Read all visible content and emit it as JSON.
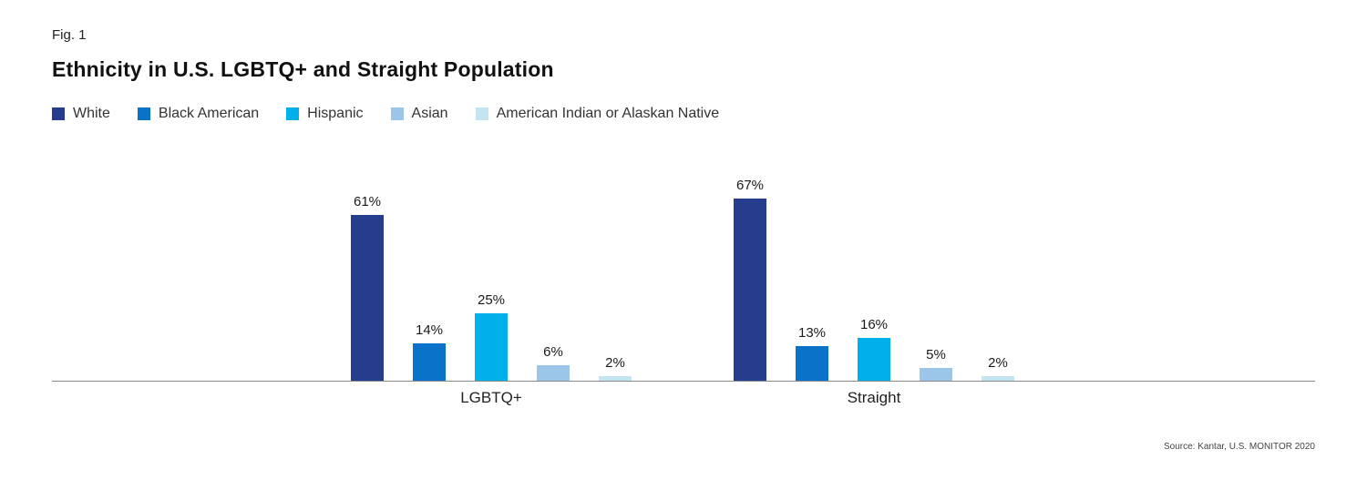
{
  "figure": {
    "fig_label": "Fig. 1",
    "title": "Ethnicity in U.S. LGBTQ+ and Straight Population",
    "source": "Source: Kantar, U.S. MONITOR 2020"
  },
  "chart_data": {
    "type": "bar",
    "title": "Ethnicity in U.S. LGBTQ+ and Straight Population",
    "categories": [
      "LGBTQ+",
      "Straight"
    ],
    "series": [
      {
        "name": "White",
        "color": "#263c8d",
        "values": [
          61,
          67
        ]
      },
      {
        "name": "Black American",
        "color": "#0a72c8",
        "values": [
          14,
          13
        ]
      },
      {
        "name": "Hispanic",
        "color": "#00b0ea",
        "values": [
          25,
          16
        ]
      },
      {
        "name": "Asian",
        "color": "#9cc6e9",
        "values": [
          6,
          5
        ]
      },
      {
        "name": "American Indian or Alaskan Native",
        "color": "#c3e5f2",
        "values": [
          2,
          2
        ]
      }
    ],
    "value_suffix": "%",
    "xlabel": "",
    "ylabel": "",
    "ylim": [
      0,
      70
    ],
    "grid": false,
    "legend_position": "top",
    "data_labels": true
  }
}
